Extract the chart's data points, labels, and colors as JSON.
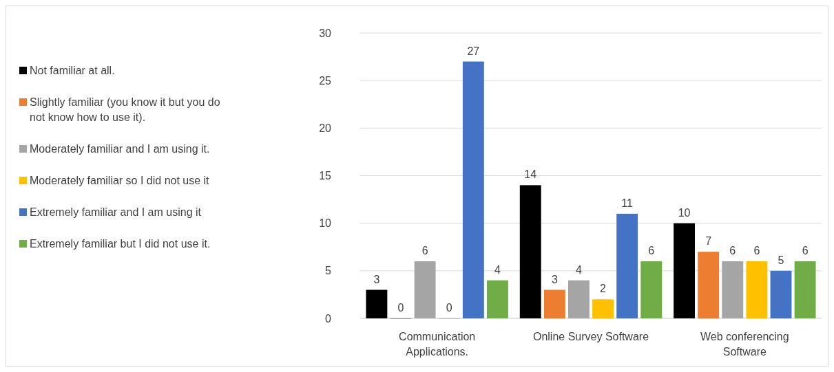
{
  "chart_data": {
    "type": "bar",
    "categories": [
      "Communication Applications.",
      "Online Survey Software",
      "Web conferencing Software"
    ],
    "series": [
      {
        "name": "Not familiar at all.",
        "color": "#000000",
        "values": [
          3,
          14,
          10
        ]
      },
      {
        "name": "Slightly familiar (you know it but you do not know how to use it).",
        "color": "#ed7d31",
        "values": [
          0,
          3,
          7
        ]
      },
      {
        "name": "Moderately familiar and I am using it.",
        "color": "#a5a5a5",
        "values": [
          6,
          4,
          6
        ]
      },
      {
        "name": "Moderately familiar so I did not use it",
        "color": "#ffc000",
        "values": [
          0,
          2,
          6
        ]
      },
      {
        "name": "Extremely familiar and I am using it",
        "color": "#4472c4",
        "values": [
          27,
          11,
          5
        ]
      },
      {
        "name": "Extremely familiar but I did not use it.",
        "color": "#70ad47",
        "values": [
          4,
          6,
          6
        ]
      }
    ],
    "ylim": [
      0,
      30
    ],
    "yticks": [
      0,
      5,
      10,
      15,
      20,
      25,
      30
    ],
    "grid": "y",
    "legend": "left",
    "data_labels": true
  }
}
